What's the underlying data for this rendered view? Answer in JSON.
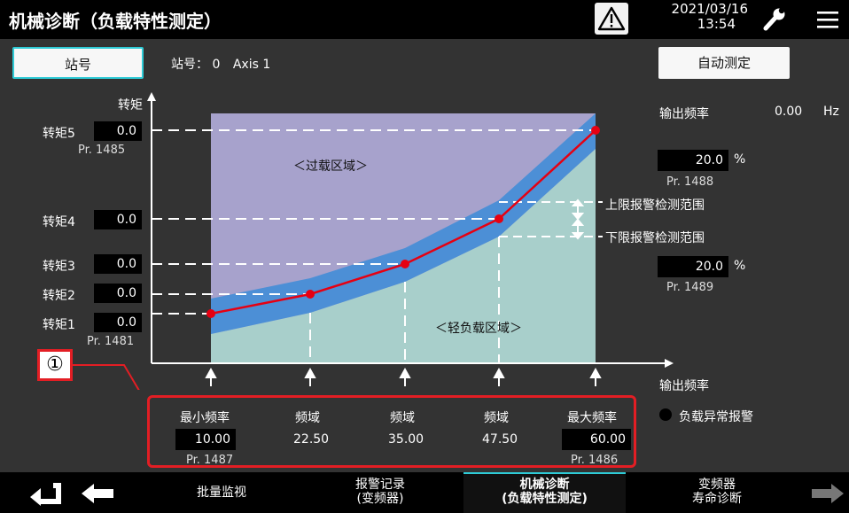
{
  "header": {
    "title": "机械诊断（负载特性测定）",
    "date": "2021/03/16",
    "time": "13:54"
  },
  "station": {
    "button_label": "站号",
    "info_label": "站号：",
    "number": "0",
    "axis": "Axis 1"
  },
  "auto_measure_label": "自动测定",
  "torque": {
    "axis_label": "转矩",
    "items": [
      {
        "label": "转矩5",
        "value": "0.0",
        "param": "Pr. 1485"
      },
      {
        "label": "转矩4",
        "value": "0.0"
      },
      {
        "label": "转矩3",
        "value": "0.0"
      },
      {
        "label": "转矩2",
        "value": "0.0"
      },
      {
        "label": "转矩1",
        "value": "0.0",
        "param": "Pr. 1481"
      }
    ]
  },
  "output_frequency": {
    "label": "输出频率",
    "value": "0.00",
    "unit": "Hz"
  },
  "upper_limit": {
    "value": "20.0",
    "unit": "%",
    "param": "Pr. 1488",
    "label": "上限报警检测范围"
  },
  "lower_limit": {
    "value": "20.0",
    "unit": "%",
    "param": "Pr. 1489",
    "label": "下限报警检测范围"
  },
  "regions": {
    "overload": "＜过载区域＞",
    "light_load": "＜轻负载区域＞"
  },
  "x_axis_label": "输出频率",
  "marker_label": "①",
  "frequencies": [
    {
      "label": "最小频率",
      "value": "10.00",
      "param": "Pr. 1487"
    },
    {
      "label": "频域",
      "value": "22.50"
    },
    {
      "label": "频域",
      "value": "35.00"
    },
    {
      "label": "频域",
      "value": "47.50"
    },
    {
      "label": "最大频率",
      "value": "60.00",
      "param": "Pr. 1486"
    }
  ],
  "alarm_label": "负载异常报警",
  "nav": {
    "batch_monitor": "批量监视",
    "alarm_record_1": "报警记录",
    "alarm_record_2": "(变频器)",
    "mech_diag_1": "机械诊断",
    "mech_diag_2": "(负载特性测定)",
    "life_diag_1": "变频器",
    "life_diag_2": "寿命诊断"
  },
  "colors": {
    "accent": "#2ecbd6",
    "highlight_red": "#e31e24",
    "overload_region": "#a7a2cc",
    "light_region": "#a8cfcb",
    "band": "#4c8fd6",
    "curve": "#e60012"
  }
}
